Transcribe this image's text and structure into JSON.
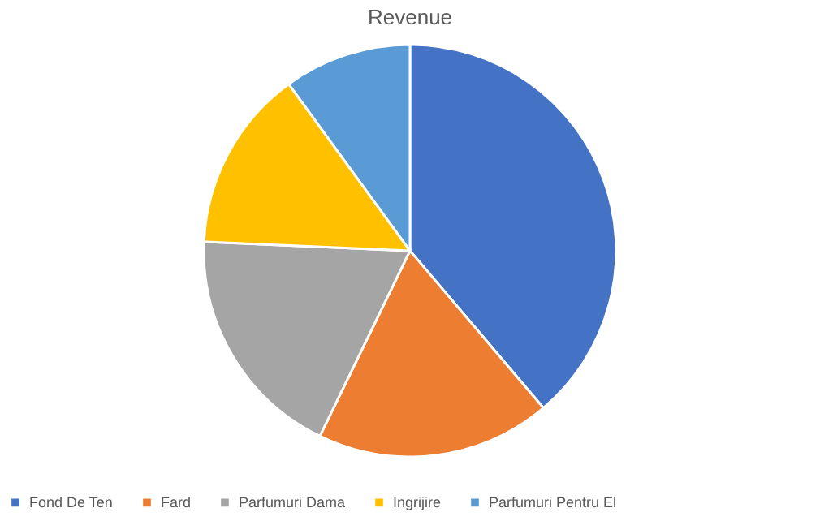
{
  "chart_data": {
    "type": "pie",
    "title": "Revenue",
    "categories": [
      "Fond De Ten",
      "Fard",
      "Parfumuri Dama",
      "Ingrijire",
      "Parfumuri Pentru El"
    ],
    "values": [
      38.8,
      18.4,
      18.5,
      14.3,
      10.0
    ],
    "colors": [
      "#4472c4",
      "#ed7d31",
      "#a5a5a5",
      "#ffc000",
      "#5b9bd5"
    ],
    "legend": "bottom"
  }
}
